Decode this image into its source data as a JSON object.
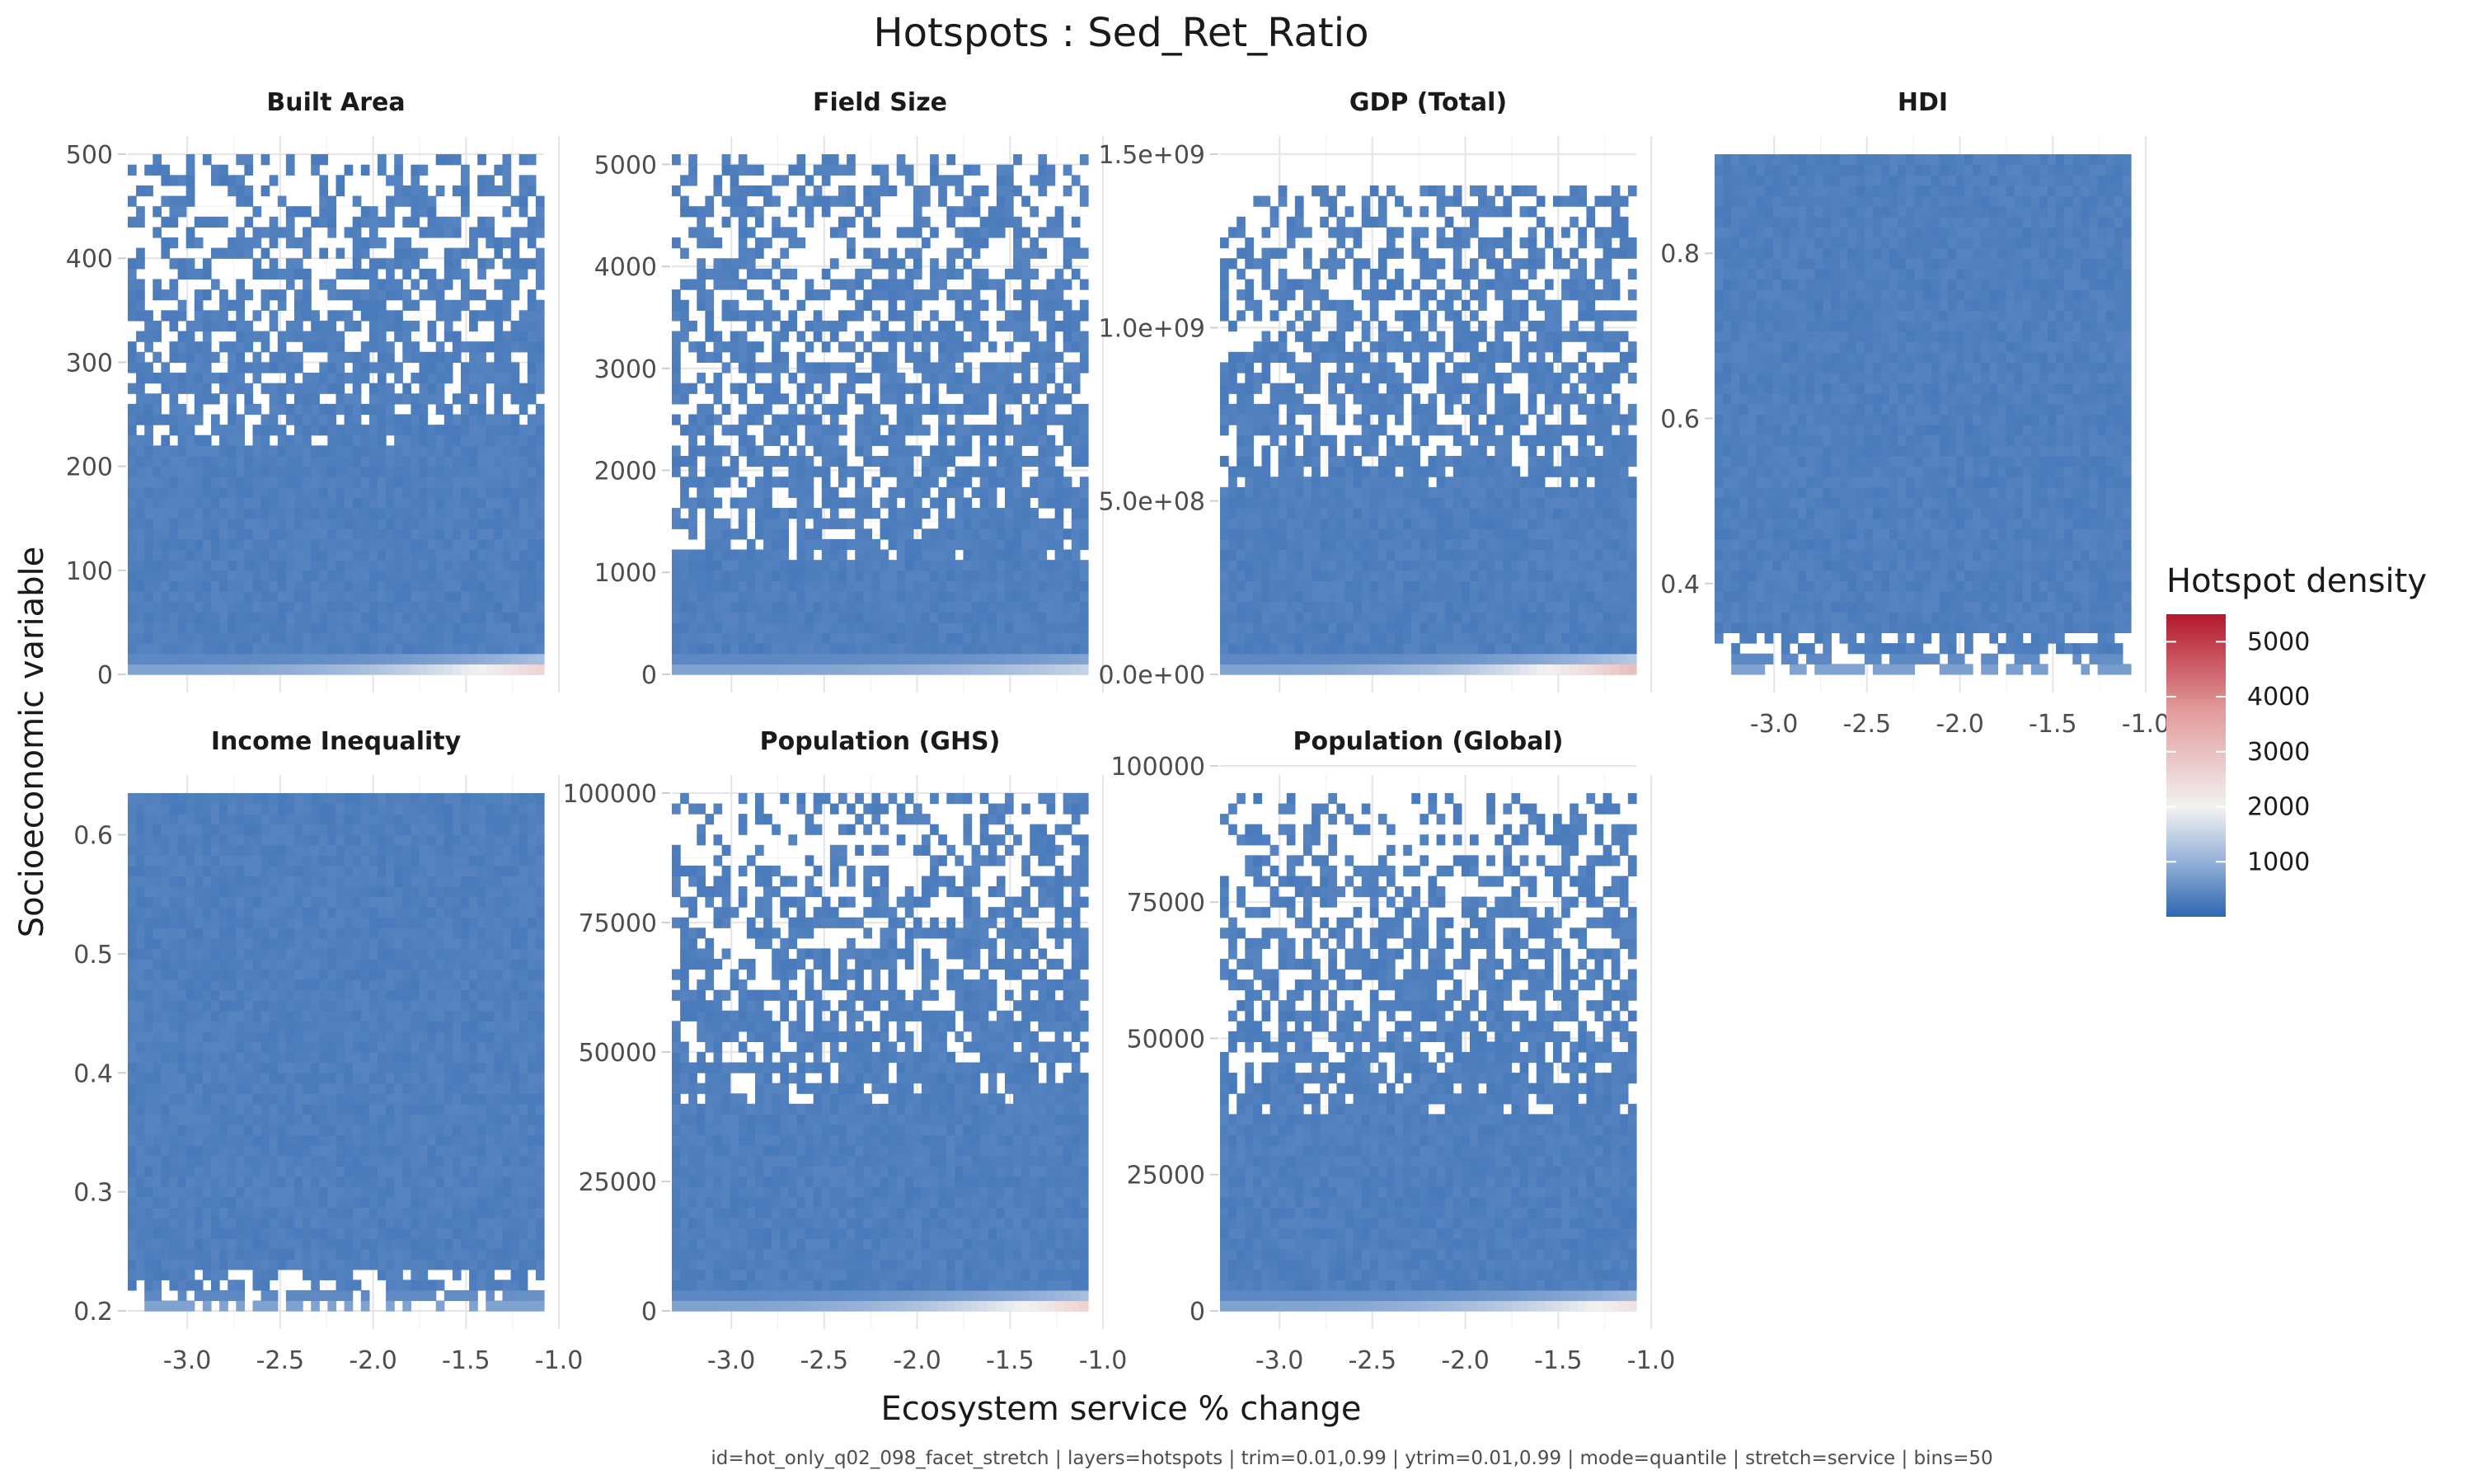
{
  "chart_data": {
    "type": "heatmap",
    "title": "Hotspots : Sed_Ret_Ratio",
    "xlabel": "Ecosystem service % change",
    "ylabel": "Socioeconomic variable",
    "caption": "id=hot_only_q02_098_facet_stretch | layers=hotspots | trim=0.01,0.99 | ytrim=0.01,0.99 | mode=quantile | stretch=service | bins=50",
    "x_range": [
      -3.32,
      -1.08
    ],
    "x_ticks": [
      -3.0,
      -2.5,
      -2.0,
      -1.5,
      -1.0
    ],
    "x_tick_labels": [
      "-3.0",
      "-2.5",
      "-2.0",
      "-1.5",
      "-1.0"
    ],
    "bins": 50,
    "legend": {
      "title": "Hotspot density",
      "position": "right",
      "ticks": [
        1000,
        2000,
        3000,
        4000,
        5000
      ],
      "tick_labels": [
        "1000",
        "2000",
        "3000",
        "4000",
        "5000"
      ],
      "colors": [
        "#2f67b1",
        "#93b0d8",
        "#f2f2f2",
        "#e39b9b",
        "#b2182b"
      ]
    },
    "facets": [
      {
        "title": "Built Area",
        "ylim": [
          0,
          500
        ],
        "y_ticks": [
          0,
          100,
          200,
          300,
          400,
          500
        ],
        "y_tick_labels": [
          "0",
          "100",
          "200",
          "300",
          "400",
          "500"
        ],
        "dense_top": 220,
        "sparse_top": 500,
        "peak": 2600
      },
      {
        "title": "Field Size",
        "ylim": [
          0,
          5100
        ],
        "y_ticks": [
          0,
          1000,
          2000,
          3000,
          4000,
          5000
        ],
        "y_tick_labels": [
          "0",
          "1000",
          "2000",
          "3000",
          "4000",
          "5000"
        ],
        "dense_top": 1100,
        "sparse_top": 5100,
        "peak": 1500
      },
      {
        "title": "GDP (Total)",
        "ylim": [
          0,
          1500000000.0
        ],
        "y_ticks": [
          0,
          500000000.0,
          1000000000.0,
          1500000000.0
        ],
        "y_tick_labels": [
          "0.0e+00",
          "5.0e+08",
          "1.0e+09",
          "1.5e+09"
        ],
        "dense_top": 530000000.0,
        "sparse_top": 1400000000.0,
        "peak": 3000
      },
      {
        "title": "HDI",
        "ylim": [
          0.29,
          0.92
        ],
        "y_ticks": [
          0.4,
          0.6,
          0.8
        ],
        "y_tick_labels": [
          "0.4",
          "0.6",
          "0.8"
        ],
        "dense_top": 0.92,
        "sparse_top": 0.92,
        "peak": 700
      },
      {
        "title": "Income Inequality",
        "ylim": [
          0.2,
          0.635
        ],
        "y_ticks": [
          0.2,
          0.3,
          0.4,
          0.5,
          0.6
        ],
        "y_tick_labels": [
          "0.2",
          "0.3",
          "0.4",
          "0.5",
          "0.6"
        ],
        "dense_top": 0.635,
        "sparse_top": 0.635,
        "peak": 800
      },
      {
        "title": "Population (GHS)",
        "ylim": [
          0,
          100000
        ],
        "y_ticks": [
          0,
          25000,
          50000,
          75000,
          100000
        ],
        "y_tick_labels": [
          "0",
          "25000",
          "50000",
          "75000",
          "100000"
        ],
        "dense_top": 40000,
        "sparse_top": 100000,
        "peak": 2600
      },
      {
        "title": "Population (Global)",
        "ylim": [
          0,
          95000
        ],
        "y_ticks": [
          0,
          25000,
          50000,
          75000,
          100000
        ],
        "y_tick_labels": [
          "0",
          "25000",
          "50000",
          "75000",
          "100000"
        ],
        "dense_top": 35000,
        "sparse_top": 95000,
        "peak": 2300
      }
    ]
  }
}
